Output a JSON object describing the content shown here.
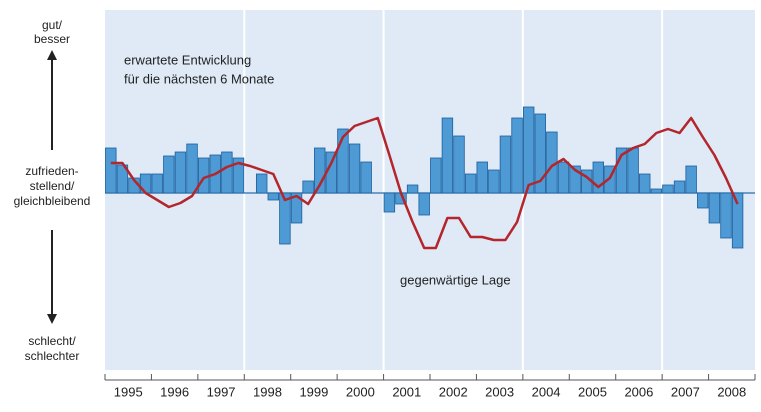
{
  "chart_data": {
    "type": "bar-line",
    "annotations": [
      "erwartete Entwicklung",
      "für die nächsten 6 Monate",
      "gegenwärtige Lage"
    ],
    "y_labels": {
      "top": [
        "gut/",
        "besser"
      ],
      "middle": [
        "zufrieden-",
        "stellend/",
        "gleichbleibend"
      ],
      "bottom": [
        "schlecht/",
        "schlechter"
      ]
    },
    "x": [
      1995,
      1995.25,
      1995.5,
      1995.75,
      1996,
      1996.25,
      1996.5,
      1996.75,
      1997,
      1997.25,
      1997.5,
      1997.75,
      1998,
      1998.25,
      1998.5,
      1998.75,
      1999,
      1999.25,
      1999.5,
      1999.75,
      2000,
      2000.25,
      2000.5,
      2000.75,
      2001,
      2001.25,
      2001.5,
      2001.75,
      2002,
      2002.25,
      2002.5,
      2002.75,
      2003,
      2003.25,
      2003.5,
      2003.75,
      2004,
      2004.25,
      2004.5,
      2004.75,
      2005,
      2005.25,
      2005.5,
      2005.75,
      2006,
      2006.25,
      2006.5,
      2006.75,
      2007,
      2007.25,
      2007.5,
      2007.75,
      2008,
      2008.25,
      2008.5
    ],
    "series": [
      {
        "kind": "bar",
        "color": "#4d9ad4",
        "values": [
          45,
          28,
          15,
          19,
          19,
          37,
          41,
          49,
          35,
          38,
          41,
          35,
          null,
          19,
          -7,
          -51,
          -30,
          12,
          45,
          41,
          64,
          49,
          31,
          null,
          -19,
          -11,
          8,
          -22,
          35,
          75,
          57,
          19,
          31,
          23,
          57,
          75,
          86,
          79,
          61,
          31,
          27,
          23,
          31,
          27,
          45,
          45,
          19,
          4,
          8,
          12,
          27,
          -15,
          -30,
          -45,
          -55
        ]
      },
      {
        "kind": "line",
        "color": "#b3262c",
        "values": [
          30,
          30,
          13,
          0,
          -7,
          -14,
          -10,
          -3,
          15,
          19,
          26,
          30,
          27,
          23,
          19,
          -7,
          -3,
          -11,
          8,
          30,
          56,
          67,
          71,
          75,
          38,
          0,
          -29,
          -55,
          -55,
          -25,
          -25,
          -44,
          -44,
          -47,
          -47,
          -29,
          8,
          12,
          27,
          34,
          23,
          16,
          6,
          15,
          38,
          45,
          49,
          60,
          64,
          60,
          75,
          56,
          38,
          15,
          -11
        ]
      }
    ],
    "xlim": [
      1995,
      2009
    ],
    "xticks": [
      1995,
      1996,
      1997,
      1998,
      1999,
      2000,
      2001,
      2002,
      2003,
      2004,
      2005,
      2006,
      2007,
      2008
    ],
    "ylim": [
      -177,
      183
    ]
  }
}
